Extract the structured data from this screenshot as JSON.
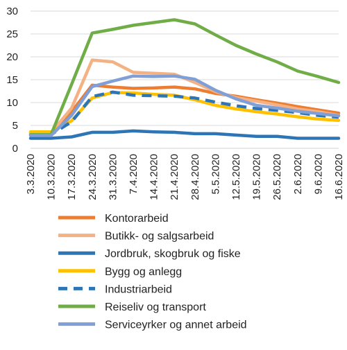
{
  "chart_data": {
    "type": "line",
    "title": "",
    "xlabel": "",
    "ylabel": "",
    "ylim": [
      0,
      30
    ],
    "yticks": [
      0,
      5,
      10,
      15,
      20,
      25,
      30
    ],
    "grid": "horizontal",
    "legend_position": "bottom",
    "categories": [
      "3.3.2020",
      "10.3.2020",
      "17.3.2020",
      "24.3.2020",
      "31.3.2020",
      "7.4.2020",
      "14.4.2020",
      "21.4.2020",
      "28.4.2020",
      "5.5.2020",
      "12.5.2020",
      "19.5.2020",
      "26.5.2020",
      "2.6.2020",
      "9.6.2020",
      "16.6.2020"
    ],
    "series": [
      {
        "name": "Kontorarbeid",
        "color": "#ED7D31",
        "dash": false,
        "values": [
          3.3,
          3.3,
          8.0,
          13.8,
          13.4,
          13.1,
          13.2,
          13.4,
          13.0,
          12.0,
          11.4,
          10.6,
          9.9,
          9.1,
          8.4,
          7.7
        ]
      },
      {
        "name": "Butikk- og salgsarbeid",
        "color": "#F4B183",
        "dash": false,
        "values": [
          3.4,
          3.4,
          8.8,
          19.3,
          18.9,
          16.6,
          16.4,
          16.2,
          14.4,
          12.4,
          11.1,
          10.3,
          9.5,
          8.6,
          8.0,
          7.2
        ]
      },
      {
        "name": "Jordbruk, skogbruk og fiske",
        "color": "#2E75B6",
        "dash": false,
        "values": [
          2.2,
          2.2,
          2.5,
          3.5,
          3.5,
          3.8,
          3.6,
          3.5,
          3.2,
          3.2,
          2.9,
          2.6,
          2.6,
          2.2,
          2.2,
          2.2
        ]
      },
      {
        "name": "Bygg og anlegg",
        "color": "#FFC000",
        "dash": false,
        "values": [
          3.6,
          3.6,
          6.0,
          11.0,
          12.2,
          12.1,
          11.8,
          11.6,
          10.6,
          9.4,
          8.6,
          8.0,
          7.5,
          6.9,
          6.4,
          6.1
        ]
      },
      {
        "name": "Industriarbeid",
        "color": "#2E75B6",
        "dash": true,
        "values": [
          3.0,
          3.0,
          5.8,
          11.3,
          12.3,
          11.6,
          11.5,
          11.4,
          11.0,
          10.1,
          9.3,
          8.7,
          8.3,
          7.8,
          7.2,
          6.8
        ]
      },
      {
        "name": "Reiseliv og transport",
        "color": "#70AD47",
        "dash": false,
        "values": [
          3.0,
          3.0,
          14.0,
          25.2,
          26.0,
          26.9,
          27.5,
          28.1,
          27.2,
          24.8,
          22.5,
          20.6,
          18.9,
          16.9,
          15.7,
          14.4
        ]
      },
      {
        "name": "Serviceyrker og annet arbeid",
        "color": "#7F9FD6",
        "dash": false,
        "values": [
          2.8,
          2.8,
          7.2,
          13.5,
          14.7,
          15.8,
          15.7,
          15.8,
          15.1,
          12.7,
          10.8,
          9.4,
          8.8,
          8.1,
          7.6,
          7.1
        ]
      }
    ]
  }
}
